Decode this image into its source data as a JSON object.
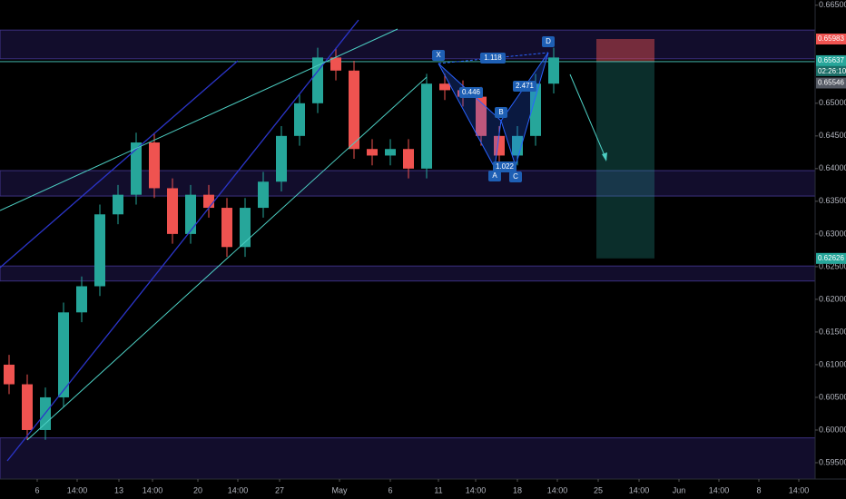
{
  "chart_data": {
    "type": "candlestick",
    "x": [
      10,
      30,
      50,
      70,
      90,
      110,
      130,
      150,
      170,
      190,
      210,
      230,
      250,
      270,
      290,
      310,
      330,
      350,
      370,
      390,
      410,
      430,
      450,
      470,
      490,
      510,
      530,
      550,
      570,
      590,
      610
    ],
    "open": [
      0.61,
      0.607,
      0.6,
      0.605,
      0.618,
      0.622,
      0.633,
      0.636,
      0.644,
      0.637,
      0.63,
      0.636,
      0.634,
      0.628,
      0.634,
      0.638,
      0.645,
      0.65,
      0.657,
      0.655,
      0.643,
      0.642,
      0.643,
      0.64,
      0.653,
      0.652,
      0.651,
      0.645,
      0.642,
      0.645,
      0.653
    ],
    "high": [
      0.6115,
      0.6085,
      0.6065,
      0.6195,
      0.6235,
      0.6345,
      0.6375,
      0.6455,
      0.6455,
      0.6385,
      0.6375,
      0.6375,
      0.6355,
      0.6355,
      0.6395,
      0.6465,
      0.6515,
      0.6585,
      0.6585,
      0.6565,
      0.6445,
      0.6445,
      0.6445,
      0.6545,
      0.6545,
      0.6535,
      0.6525,
      0.6465,
      0.6465,
      0.6545,
      0.6585
    ],
    "low": [
      0.6055,
      0.5985,
      0.5985,
      0.6035,
      0.6165,
      0.6205,
      0.6315,
      0.6345,
      0.6355,
      0.6285,
      0.6285,
      0.6325,
      0.6265,
      0.6265,
      0.6325,
      0.6365,
      0.6435,
      0.6485,
      0.6535,
      0.6415,
      0.6405,
      0.6405,
      0.6385,
      0.6385,
      0.6505,
      0.6495,
      0.6435,
      0.6405,
      0.6405,
      0.6435,
      0.6515
    ],
    "close": [
      0.607,
      0.6,
      0.605,
      0.618,
      0.622,
      0.633,
      0.636,
      0.644,
      0.637,
      0.63,
      0.636,
      0.634,
      0.628,
      0.634,
      0.638,
      0.645,
      0.65,
      0.657,
      0.655,
      0.643,
      0.642,
      0.643,
      0.64,
      0.653,
      0.652,
      0.651,
      0.645,
      0.642,
      0.645,
      0.653,
      0.657
    ],
    "up_color": "#26a69a",
    "down_color": "#ef5350",
    "xlim": [
      0,
      898
    ],
    "xticks": [
      {
        "value": 41,
        "label": "6"
      },
      {
        "value": 85,
        "label": "14:00"
      },
      {
        "value": 131,
        "label": "13"
      },
      {
        "value": 168,
        "label": "14:00"
      },
      {
        "value": 218,
        "label": "20"
      },
      {
        "value": 262,
        "label": "14:00"
      },
      {
        "value": 308,
        "label": "27"
      },
      {
        "value": 374,
        "label": "May"
      },
      {
        "value": 430,
        "label": "6"
      },
      {
        "value": 483,
        "label": "11"
      },
      {
        "value": 524,
        "label": "14:00"
      },
      {
        "value": 570,
        "label": "18"
      },
      {
        "value": 614,
        "label": "14:00"
      },
      {
        "value": 659,
        "label": "25"
      },
      {
        "value": 704,
        "label": "14:00"
      },
      {
        "value": 748,
        "label": "Jun"
      },
      {
        "value": 792,
        "label": "14:00"
      },
      {
        "value": 836,
        "label": "8"
      },
      {
        "value": 880,
        "label": "14:00"
      }
    ],
    "ylim": [
      0.5925,
      0.6658
    ],
    "yticks": [
      {
        "value": 0.665,
        "label": "0.66500"
      },
      {
        "value": 0.65,
        "label": "0.65000"
      },
      {
        "value": 0.645,
        "label": "0.64500"
      },
      {
        "value": 0.64,
        "label": "0.64000"
      },
      {
        "value": 0.635,
        "label": "0.63500"
      },
      {
        "value": 0.63,
        "label": "0.63000"
      },
      {
        "value": 0.625,
        "label": "0.62500"
      },
      {
        "value": 0.62,
        "label": "0.62000"
      },
      {
        "value": 0.615,
        "label": "0.61500"
      },
      {
        "value": 0.61,
        "label": "0.61000"
      },
      {
        "value": 0.605,
        "label": "0.60500"
      },
      {
        "value": 0.6,
        "label": "0.60000"
      },
      {
        "value": 0.595,
        "label": "0.59500"
      }
    ],
    "zones": [
      [
        0.6568,
        0.6612
      ],
      [
        0.6358,
        0.6397
      ],
      [
        0.6228,
        0.6251
      ],
      [
        0.5925,
        0.5988
      ]
    ],
    "stop": {
      "value": 0.65983,
      "label": "0.65983"
    },
    "entry": {
      "value": 0.65637,
      "label": "0.65637"
    },
    "target": {
      "value": 0.62626,
      "label": "0.62626"
    },
    "last": {
      "value": 0.65546,
      "label": "0.65546"
    },
    "countdown": "02:26:10",
    "pattern": {
      "points": [
        "X",
        "A",
        "B",
        "C",
        "D"
      ],
      "ratios": [
        "1.118",
        "0.446",
        "2.471",
        "1.022"
      ]
    }
  }
}
